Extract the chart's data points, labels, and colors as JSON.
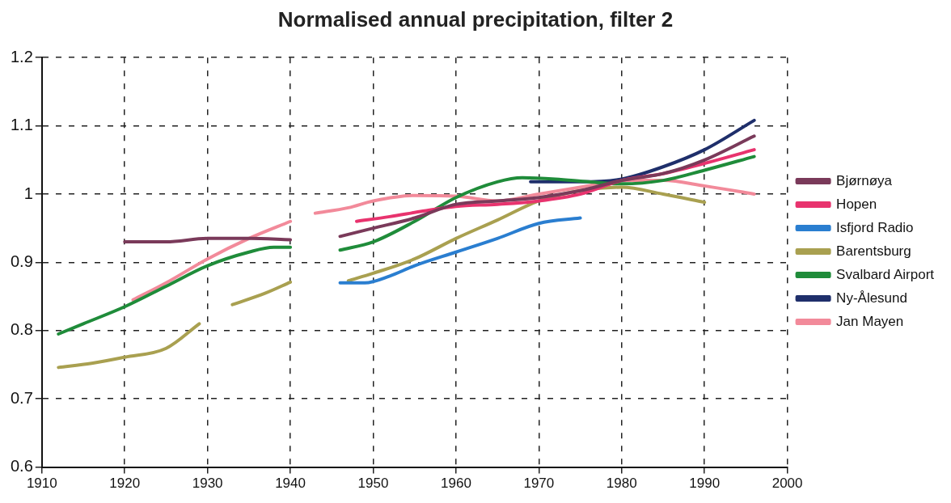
{
  "chart_data": {
    "type": "line",
    "title": "Normalised annual precipitation, filter 2",
    "xlim": [
      1910,
      2000
    ],
    "xticks": [
      1910,
      1920,
      1930,
      1940,
      1950,
      1960,
      1970,
      1980,
      1990,
      2000
    ],
    "ylim": [
      0.6,
      1.2
    ],
    "yticks": [
      {
        "value": 0.6,
        "label": "0.6"
      },
      {
        "value": 0.7,
        "label": "0.7"
      },
      {
        "value": 0.8,
        "label": "0.8"
      },
      {
        "value": 0.9,
        "label": "0.9"
      },
      {
        "value": 1,
        "label": "1"
      },
      {
        "value": 1.1,
        "label": "1.1"
      },
      {
        "value": 1.2,
        "label": "1.2"
      }
    ],
    "grid": true,
    "legend": "right",
    "marker": "none",
    "line_style": "solid",
    "series": [
      {
        "name": "Bjørnøya",
        "color": "#7a3a5a",
        "x": [
          1920,
          1925,
          1930,
          1935,
          1940,
          1943,
          1946,
          1950,
          1955,
          1960,
          1965,
          1970,
          1975,
          1980,
          1985,
          1990,
          1996
        ],
        "values": [
          0.93,
          0.93,
          0.935,
          0.935,
          0.933,
          null,
          0.938,
          0.95,
          0.965,
          0.985,
          0.99,
          0.995,
          1.005,
          1.02,
          1.03,
          1.05,
          1.085
        ]
      },
      {
        "name": "Hopen",
        "color": "#e8336e",
        "x": [
          1948,
          1952,
          1956,
          1960,
          1965,
          1970,
          1975,
          1980,
          1985,
          1990,
          1996
        ],
        "values": [
          0.96,
          0.967,
          0.975,
          0.982,
          0.985,
          0.99,
          1.0,
          1.02,
          1.03,
          1.045,
          1.065
        ]
      },
      {
        "name": "Isfjord Radio",
        "color": "#2a7ed0",
        "x": [
          1946,
          1949,
          1952,
          1955,
          1960,
          1965,
          1970,
          1975
        ],
        "values": [
          0.87,
          0.87,
          0.88,
          0.895,
          0.915,
          0.935,
          0.957,
          0.965
        ]
      },
      {
        "name": "Barentsburg",
        "color": "#a9a050",
        "x": [
          1912,
          1916,
          1920,
          1925,
          1929,
          1931,
          1933,
          1937,
          1940,
          1944,
          1947,
          1950,
          1955,
          1960,
          1965,
          1970,
          1975,
          1980,
          1985,
          1990
        ],
        "values": [
          0.746,
          0.752,
          0.761,
          0.774,
          0.81,
          null,
          0.838,
          0.855,
          0.871,
          null,
          0.873,
          0.884,
          0.905,
          0.935,
          0.962,
          0.99,
          1.005,
          1.01,
          1.0,
          0.988
        ]
      },
      {
        "name": "Svalbard Airport",
        "color": "#1f8c3a",
        "x": [
          1912,
          1915,
          1920,
          1925,
          1930,
          1935,
          1938,
          1940,
          1943,
          1946,
          1950,
          1955,
          1960,
          1965,
          1968,
          1972,
          1976,
          1980,
          1985,
          1990,
          1996
        ],
        "values": [
          0.795,
          0.81,
          0.835,
          0.865,
          0.895,
          0.915,
          0.922,
          0.922,
          null,
          0.918,
          0.93,
          0.96,
          0.995,
          1.018,
          1.024,
          1.022,
          1.018,
          1.015,
          1.02,
          1.035,
          1.055
        ]
      },
      {
        "name": "Ny-Ålesund",
        "color": "#1f2f6b",
        "x": [
          1969,
          1975,
          1980,
          1985,
          1990,
          1996
        ],
        "values": [
          1.018,
          1.018,
          1.022,
          1.04,
          1.065,
          1.108
        ]
      },
      {
        "name": "Jan Mayen",
        "color": "#f28a9a",
        "x": [
          1921,
          1925,
          1930,
          1935,
          1940,
          1942,
          1943,
          1947,
          1950,
          1955,
          1960,
          1965,
          1970,
          1975,
          1980,
          1985,
          1990,
          1996
        ],
        "values": [
          0.845,
          0.87,
          0.905,
          0.935,
          0.96,
          null,
          0.972,
          0.98,
          0.99,
          0.998,
          0.997,
          0.99,
          1.0,
          1.01,
          1.02,
          1.02,
          1.012,
          1.0
        ]
      }
    ]
  }
}
